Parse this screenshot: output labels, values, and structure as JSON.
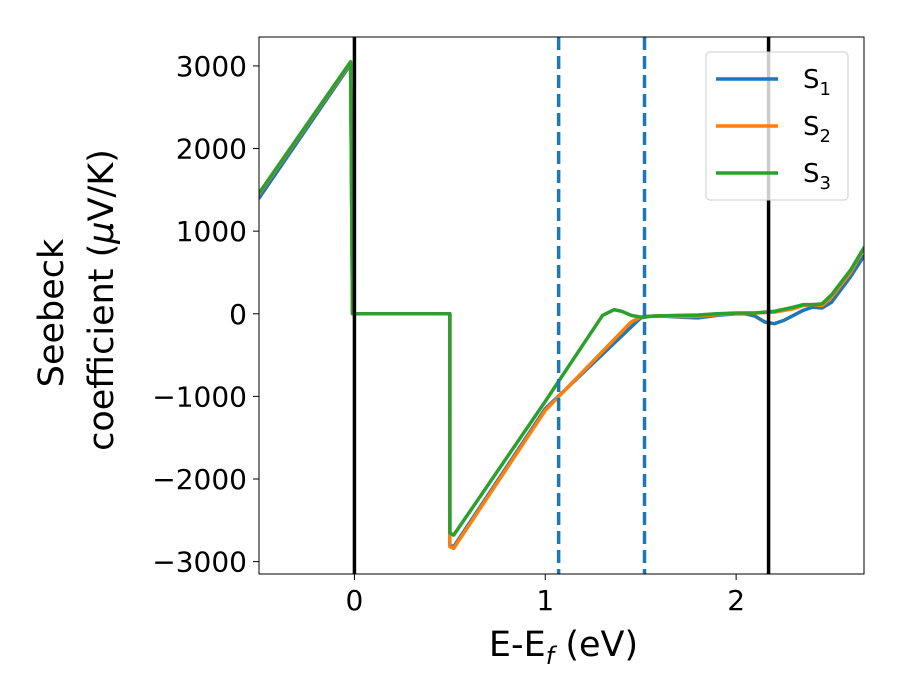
{
  "chart_data": {
    "type": "line",
    "xlabel": {
      "main": "E-E",
      "sub": "f",
      "unit": " (eV)"
    },
    "ylabel": {
      "line1": "Seebeck",
      "line2_pre": "coefficient  (",
      "mu": "μ",
      "line2_post": "V/K)"
    },
    "xlim": [
      -0.5,
      2.67
    ],
    "ylim": [
      -3150,
      3350
    ],
    "xticks": [
      {
        "value": 0,
        "label": "0"
      },
      {
        "value": 1,
        "label": "1"
      },
      {
        "value": 2,
        "label": "2"
      }
    ],
    "yticks": [
      {
        "value": 3000,
        "label": "3000"
      },
      {
        "value": 2000,
        "label": "2000"
      },
      {
        "value": 1000,
        "label": "1000"
      },
      {
        "value": 0,
        "label": "0"
      },
      {
        "value": -1000,
        "label": "−1000"
      },
      {
        "value": -2000,
        "label": "−2000"
      },
      {
        "value": -3000,
        "label": "−3000"
      }
    ],
    "vlines": [
      {
        "x": 0,
        "style": "solid",
        "color": "#000000"
      },
      {
        "x": 2.17,
        "style": "solid",
        "color": "#000000"
      },
      {
        "x": 1.07,
        "style": "dashed",
        "color": "#1f77b4"
      },
      {
        "x": 1.52,
        "style": "dashed",
        "color": "#1f77b4"
      }
    ],
    "legend": {
      "placement": "top-right"
    },
    "series": [
      {
        "name": "S",
        "sub": "1",
        "color": "#1f77b4",
        "points": [
          [
            -0.5,
            1400
          ],
          [
            -0.02,
            3020
          ],
          [
            -0.01,
            0
          ],
          [
            0.5,
            0
          ],
          [
            0.5,
            -2800
          ],
          [
            0.52,
            -2820
          ],
          [
            1.0,
            -1150
          ],
          [
            1.5,
            -50
          ],
          [
            1.55,
            -30
          ],
          [
            1.6,
            -25
          ],
          [
            1.7,
            -40
          ],
          [
            1.8,
            -50
          ],
          [
            1.9,
            -20
          ],
          [
            2.0,
            0
          ],
          [
            2.05,
            0
          ],
          [
            2.1,
            -30
          ],
          [
            2.15,
            -100
          ],
          [
            2.2,
            -120
          ],
          [
            2.25,
            -80
          ],
          [
            2.3,
            -20
          ],
          [
            2.35,
            40
          ],
          [
            2.4,
            80
          ],
          [
            2.45,
            70
          ],
          [
            2.5,
            140
          ],
          [
            2.6,
            450
          ],
          [
            2.67,
            700
          ]
        ]
      },
      {
        "name": "S",
        "sub": "2",
        "color": "#ff7f0e",
        "points": [
          [
            -0.5,
            1450
          ],
          [
            -0.02,
            3040
          ],
          [
            -0.01,
            0
          ],
          [
            0.5,
            0
          ],
          [
            0.5,
            -2820
          ],
          [
            0.52,
            -2840
          ],
          [
            1.0,
            -1170
          ],
          [
            1.45,
            -100
          ],
          [
            1.5,
            -40
          ],
          [
            1.55,
            -30
          ],
          [
            1.6,
            -25
          ],
          [
            1.7,
            -35
          ],
          [
            1.8,
            -30
          ],
          [
            1.9,
            -10
          ],
          [
            2.0,
            5
          ],
          [
            2.1,
            10
          ],
          [
            2.2,
            20
          ],
          [
            2.3,
            60
          ],
          [
            2.35,
            100
          ],
          [
            2.4,
            110
          ],
          [
            2.45,
            100
          ],
          [
            2.5,
            200
          ],
          [
            2.6,
            500
          ],
          [
            2.67,
            790
          ]
        ]
      },
      {
        "name": "S",
        "sub": "3",
        "color": "#2ca02c",
        "points": [
          [
            -0.5,
            1460
          ],
          [
            -0.02,
            3050
          ],
          [
            -0.01,
            0
          ],
          [
            0.5,
            0
          ],
          [
            0.5,
            -2650
          ],
          [
            0.52,
            -2680
          ],
          [
            1.0,
            -1060
          ],
          [
            1.3,
            -20
          ],
          [
            1.36,
            50
          ],
          [
            1.4,
            30
          ],
          [
            1.45,
            -20
          ],
          [
            1.5,
            -40
          ],
          [
            1.55,
            -30
          ],
          [
            1.6,
            -25
          ],
          [
            1.7,
            -20
          ],
          [
            1.8,
            -15
          ],
          [
            1.9,
            0
          ],
          [
            2.0,
            10
          ],
          [
            2.1,
            10
          ],
          [
            2.2,
            30
          ],
          [
            2.3,
            80
          ],
          [
            2.35,
            110
          ],
          [
            2.4,
            110
          ],
          [
            2.45,
            120
          ],
          [
            2.5,
            230
          ],
          [
            2.6,
            530
          ],
          [
            2.67,
            800
          ]
        ]
      }
    ]
  }
}
